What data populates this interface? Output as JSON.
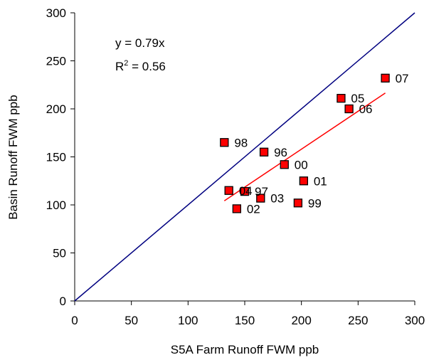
{
  "chart_data": {
    "type": "scatter",
    "xlabel": "S5A Farm Runoff FWM ppb",
    "ylabel": "Basin Runoff FWM ppb",
    "xlim": [
      0,
      300
    ],
    "ylim": [
      0,
      300
    ],
    "x_ticks": [
      0,
      50,
      100,
      150,
      200,
      250,
      300
    ],
    "y_ticks": [
      0,
      50,
      100,
      150,
      200,
      250,
      300
    ],
    "grid": false,
    "points": [
      {
        "label": "96",
        "x": 167,
        "y": 155
      },
      {
        "label": "97",
        "x": 150,
        "y": 114
      },
      {
        "label": "98",
        "x": 132,
        "y": 165
      },
      {
        "label": "99",
        "x": 197,
        "y": 102
      },
      {
        "label": "00",
        "x": 185,
        "y": 142
      },
      {
        "label": "01",
        "x": 202,
        "y": 125
      },
      {
        "label": "02",
        "x": 143,
        "y": 96
      },
      {
        "label": "03",
        "x": 164,
        "y": 107
      },
      {
        "label": "04",
        "x": 136,
        "y": 115
      },
      {
        "label": "05",
        "x": 235,
        "y": 211
      },
      {
        "label": "06",
        "x": 242,
        "y": 200
      },
      {
        "label": "07",
        "x": 274,
        "y": 232
      }
    ],
    "marker_color": "#ff0000",
    "marker_edge_color": "#000000",
    "reference_line": {
      "description": "1:1 line",
      "from": [
        0,
        0
      ],
      "to": [
        300,
        300
      ],
      "color": "#000080"
    },
    "trendline": {
      "slope": 0.79,
      "intercept": 0,
      "x_range": [
        132,
        274
      ],
      "color": "#ff0000"
    },
    "annotations": {
      "equation": "y = 0.79x",
      "r_squared_prefix": "R",
      "r_squared_exponent": "2",
      "r_squared_suffix": " = 0.56"
    }
  }
}
